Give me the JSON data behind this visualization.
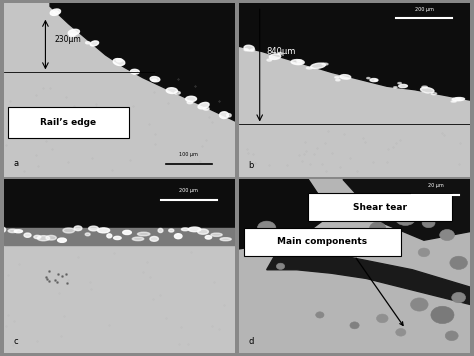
{
  "figsize": [
    4.74,
    3.56
  ],
  "dpi": 100,
  "panel_bg": "#c8c8c8",
  "dark": "#111111",
  "white": "#ffffff",
  "fig_bg": "#888888",
  "annotations": {
    "a": {
      "measurement": "230μm",
      "label_box": "Rail’s edge",
      "scale_bar": "100 μm"
    },
    "b": {
      "measurement": "840μm",
      "scale_bar": "200 μm"
    },
    "c": {
      "scale_bar": "200 μm"
    },
    "d": {
      "label1": "Shear tear",
      "label2": "Main components",
      "scale_bar": "20 μm"
    }
  }
}
